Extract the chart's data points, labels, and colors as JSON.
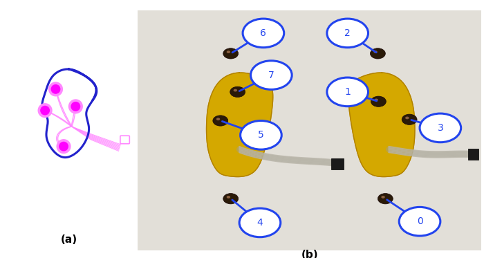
{
  "fig_width": 7.0,
  "fig_height": 3.73,
  "bg_color": "#ffffff",
  "insole_outline_color": "#2222cc",
  "sensor_fill_color": "#ff00ff",
  "sensor_ring_color": "#ff88ff",
  "wire_color": "#ff88ff",
  "label_a": "(a)",
  "label_b": "(b)",
  "circle_color": "#2244ee",
  "circle_text_color": "#2244ee",
  "photo_bg_outer": "#e8e8e0",
  "photo_bg_inner": "#d0cec8",
  "insole_color": "#d4a800",
  "insole_edge": "#b08800"
}
